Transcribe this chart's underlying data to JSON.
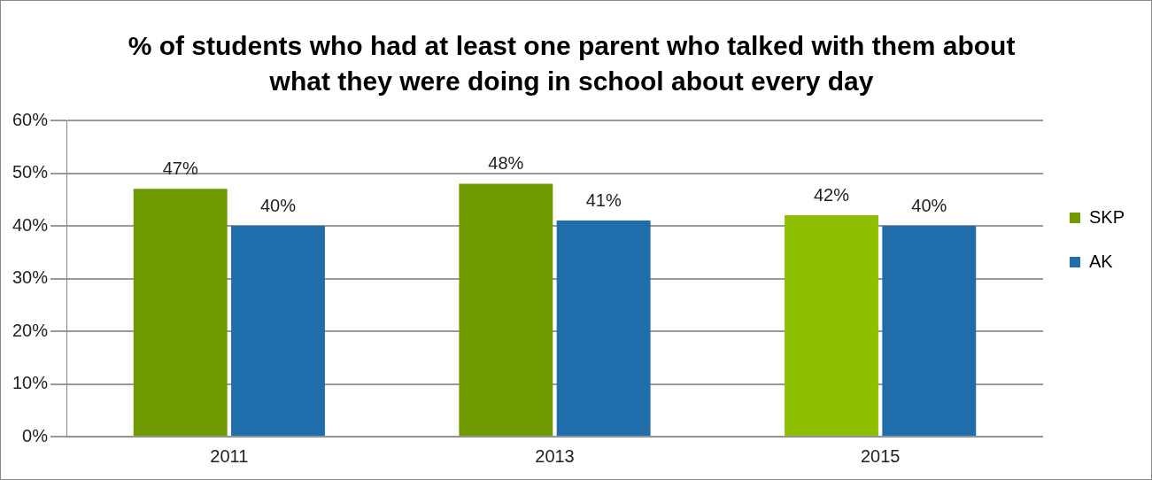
{
  "chart_data": {
    "type": "bar",
    "title": "% of students who had at least one parent who talked with them about what they were doing in school about every day",
    "categories": [
      "2011",
      "2013",
      "2015"
    ],
    "series": [
      {
        "name": "SKP",
        "color": "#6f9a00",
        "colors": [
          "#6f9a00",
          "#6f9a00",
          "#8dbf00"
        ],
        "values": [
          47,
          48,
          42
        ],
        "value_labels": [
          "47%",
          "48%",
          "42%"
        ]
      },
      {
        "name": "AK",
        "color": "#1f6dab",
        "values": [
          40,
          41,
          40
        ],
        "value_labels": [
          "40%",
          "41%",
          "40%"
        ]
      }
    ],
    "ylim": [
      0,
      60
    ],
    "yticks": [
      {
        "value": 0,
        "label": "0%"
      },
      {
        "value": 10,
        "label": "10%"
      },
      {
        "value": 20,
        "label": "20%"
      },
      {
        "value": 30,
        "label": "30%"
      },
      {
        "value": 40,
        "label": "40%"
      },
      {
        "value": 50,
        "label": "50%"
      },
      {
        "value": 60,
        "label": "60%"
      }
    ],
    "grid": "y",
    "legend": "right"
  }
}
